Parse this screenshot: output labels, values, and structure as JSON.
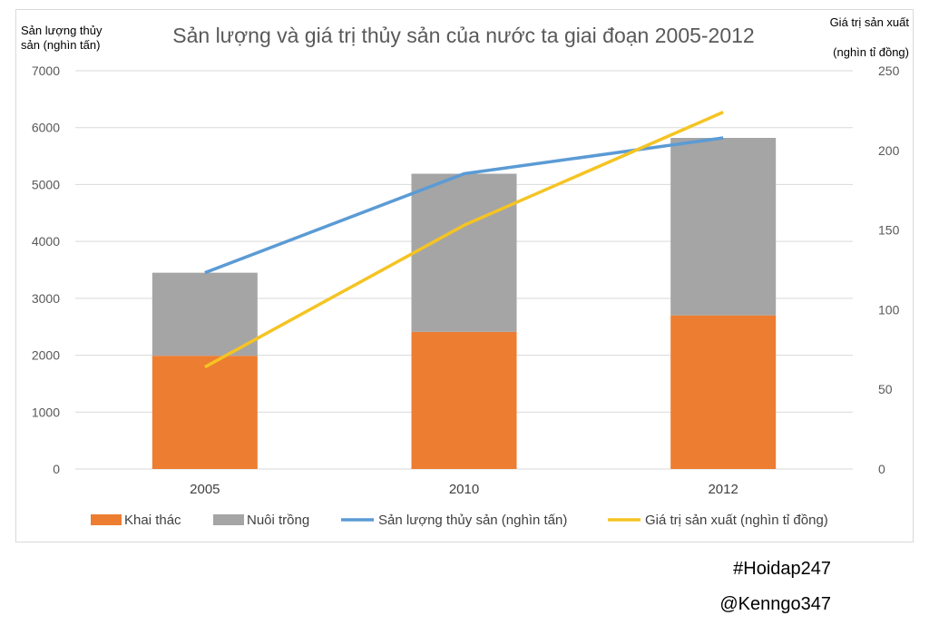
{
  "chart_data": {
    "type": "bar",
    "title": "Sản lượng và giá trị thủy sản của nước ta giai đoạn 2005-2012",
    "ylabel_left": [
      "Sản lượng thủy",
      "sản (nghìn tấn)"
    ],
    "ylabel_right": [
      "Giá trị sản xuất",
      "(nghìn tỉ đồng)"
    ],
    "categories": [
      "2005",
      "2010",
      "2012"
    ],
    "y_left": {
      "min": 0,
      "max": 7000,
      "ticks": [
        0,
        1000,
        2000,
        3000,
        4000,
        5000,
        6000,
        7000
      ]
    },
    "y_right": {
      "min": 0,
      "max": 250,
      "ticks": [
        0,
        50,
        100,
        150,
        200,
        250
      ]
    },
    "bar_series": [
      {
        "name": "Khai thác",
        "color": "#ED7D31",
        "values": [
          1990,
          2410,
          2700
        ]
      },
      {
        "name": "Nuôi trồng",
        "color": "#A5A5A5",
        "values": [
          1460,
          2780,
          3120
        ]
      }
    ],
    "line_series": [
      {
        "name": "Sản lượng thủy sản (nghìn tấn)",
        "color": "#5B9BD5",
        "axis": "left",
        "values": [
          3450,
          5190,
          5820
        ]
      },
      {
        "name": "Giá trị sản xuất (nghìn tỉ đồng)",
        "color": "#F5C423",
        "axis": "right",
        "values": [
          64,
          153,
          224
        ]
      }
    ],
    "grid": true,
    "legend_position": "bottom"
  },
  "footer": {
    "tag1": "#Hoidap247",
    "tag2": "@Kenngo347"
  }
}
